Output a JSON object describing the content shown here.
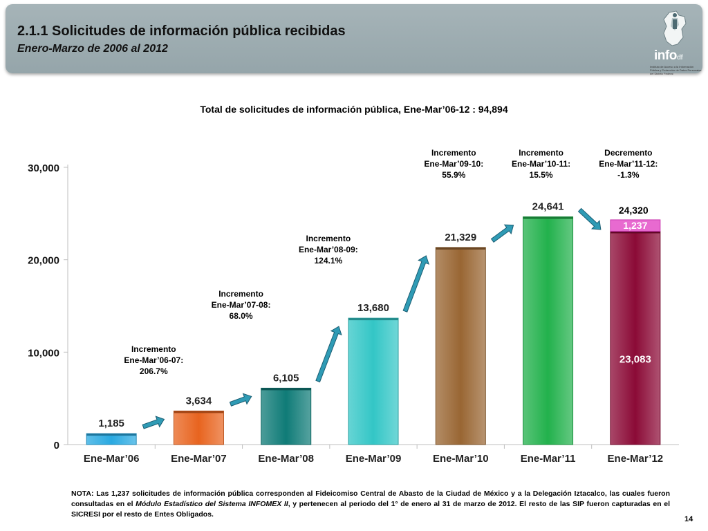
{
  "header": {
    "title": "2.1.1 Solicitudes de información pública recibidas",
    "subtitle": "Enero-Marzo de 2006 al 2012",
    "logo_name": "info",
    "logo_suffix": "df",
    "logo_tagline": "Instituto de Acceso a la Información Pública y Protección de Datos Personales del Distrito Federal"
  },
  "chart_data": {
    "type": "bar",
    "title": "Total de solicitudes de información pública, Ene-Mar’06-12 : 94,894",
    "categories": [
      "Ene-Mar’06",
      "Ene-Mar’07",
      "Ene-Mar’08",
      "Ene-Mar’09",
      "Ene-Mar’10",
      "Ene-Mar’11",
      "Ene-Mar’12"
    ],
    "values": [
      1185,
      3634,
      6105,
      13680,
      21329,
      24641,
      23083
    ],
    "value_labels": [
      "1,185",
      "3,634",
      "6,105",
      "13,680",
      "21,329",
      "24,641",
      "23,083"
    ],
    "stacked_segment": {
      "category": "Ene-Mar’12",
      "value": 1237,
      "label": "1,237",
      "color": "#e86ad0"
    },
    "total_2012_label": "24,320",
    "colors": [
      "#29a9e1",
      "#e8641f",
      "#0f7b77",
      "#33c6c6",
      "#996633",
      "#22b14c",
      "#8b0a36"
    ],
    "yticks": [
      0,
      10000,
      20000,
      30000
    ],
    "ytick_labels": [
      "0",
      "10,000",
      "20,000",
      "30,000"
    ],
    "ylim": [
      0,
      30000
    ],
    "grid": false,
    "annotations": [
      {
        "lines": [
          "Incremento",
          "Ene-Mar’06-07:",
          "206.7%"
        ]
      },
      {
        "lines": [
          "Incremento",
          "Ene-Mar’07-08:",
          "68.0%"
        ]
      },
      {
        "lines": [
          "Incremento",
          "Ene-Mar’08-09:",
          "124.1%"
        ]
      },
      {
        "lines": [
          "Incremento",
          "Ene-Mar’09-10:",
          "55.9%"
        ]
      },
      {
        "lines": [
          "Incremento",
          "Ene-Mar’10-11:",
          "15.5%"
        ]
      },
      {
        "lines": [
          "Decremento",
          "Ene-Mar’11-12:",
          "-1.3%"
        ]
      }
    ]
  },
  "note": {
    "prefix": "NOTA: Las 1,237 solicitudes de información pública corresponden al Fideicomiso Central de Abasto de la Ciudad de México y a la Delegación Iztacalco, las cuales fueron consultadas en el ",
    "italic": "Módulo Estadístico del Sistema INFOMEX II",
    "suffix": ", y pertenecen al periodo del 1° de enero al 31 de marzo de 2012. El resto de las SIP fueron capturadas en el SICRESI por el resto de Entes Obligados."
  },
  "page_number": "14"
}
